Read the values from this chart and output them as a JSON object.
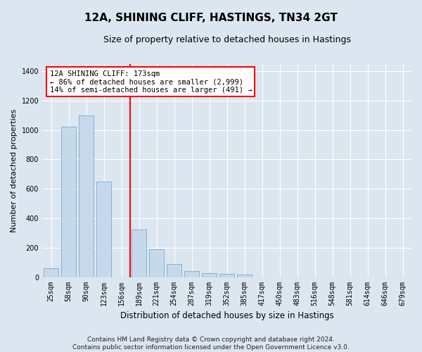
{
  "title": "12A, SHINING CLIFF, HASTINGS, TN34 2GT",
  "subtitle": "Size of property relative to detached houses in Hastings",
  "xlabel": "Distribution of detached houses by size in Hastings",
  "ylabel": "Number of detached properties",
  "bar_color": "#c6d9ec",
  "bar_edge_color": "#7aaac8",
  "background_color": "#dce6f0",
  "grid_color": "#ffffff",
  "fig_background": "#dce6f0",
  "categories": [
    "25sqm",
    "58sqm",
    "90sqm",
    "123sqm",
    "156sqm",
    "189sqm",
    "221sqm",
    "254sqm",
    "287sqm",
    "319sqm",
    "352sqm",
    "385sqm",
    "417sqm",
    "450sqm",
    "483sqm",
    "516sqm",
    "548sqm",
    "581sqm",
    "614sqm",
    "646sqm",
    "679sqm"
  ],
  "values": [
    60,
    1020,
    1100,
    650,
    0,
    325,
    190,
    90,
    40,
    25,
    22,
    15,
    0,
    0,
    0,
    0,
    0,
    0,
    0,
    0,
    0
  ],
  "ylim": [
    0,
    1450
  ],
  "yticks": [
    0,
    200,
    400,
    600,
    800,
    1000,
    1200,
    1400
  ],
  "property_line_x": 4.5,
  "annotation_title": "12A SHINING CLIFF: 173sqm",
  "annotation_line1": "← 86% of detached houses are smaller (2,999)",
  "annotation_line2": "14% of semi-detached houses are larger (491) →",
  "footer_line1": "Contains HM Land Registry data © Crown copyright and database right 2024.",
  "footer_line2": "Contains public sector information licensed under the Open Government Licence v3.0.",
  "title_fontsize": 11,
  "subtitle_fontsize": 9,
  "annotation_fontsize": 7.5,
  "ylabel_fontsize": 8,
  "xlabel_fontsize": 8.5,
  "footer_fontsize": 6.5,
  "tick_fontsize": 7
}
